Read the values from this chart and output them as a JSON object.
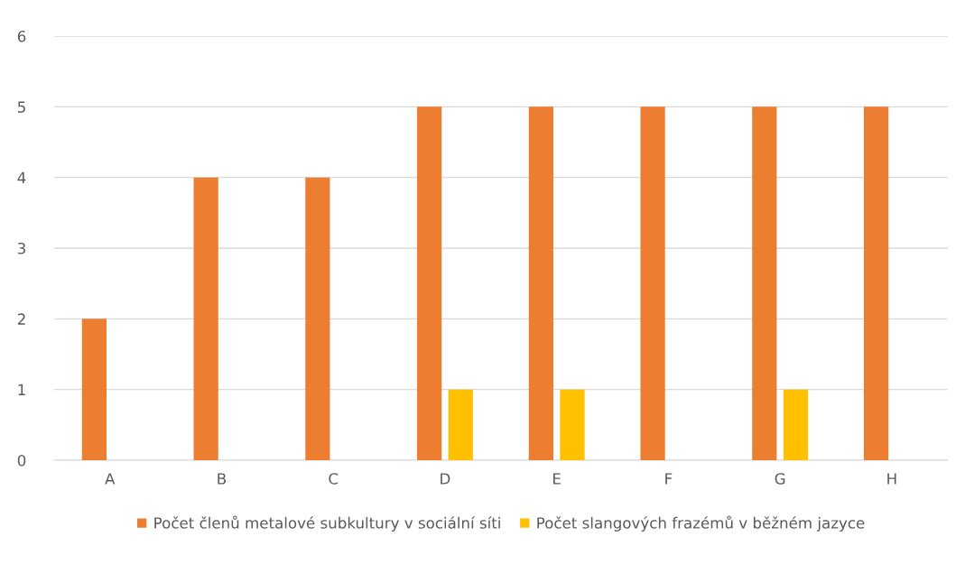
{
  "chart_data": {
    "type": "bar",
    "categories": [
      "A",
      "B",
      "C",
      "D",
      "E",
      "F",
      "G",
      "H"
    ],
    "series": [
      {
        "name": "Počet členů metalové subkultury v sociální síti",
        "color": "#ed7d31",
        "values": [
          2,
          4,
          4,
          5,
          5,
          5,
          5,
          5
        ]
      },
      {
        "name": "Počet slangových frazémů v běžném jazyce",
        "color": "#ffc000",
        "values": [
          0,
          0,
          0,
          1,
          1,
          0,
          1,
          0
        ]
      }
    ],
    "ylim": [
      0,
      6
    ],
    "yticks": [
      0,
      1,
      2,
      3,
      4,
      5,
      6
    ],
    "grid": "y",
    "legend": "bottom"
  }
}
